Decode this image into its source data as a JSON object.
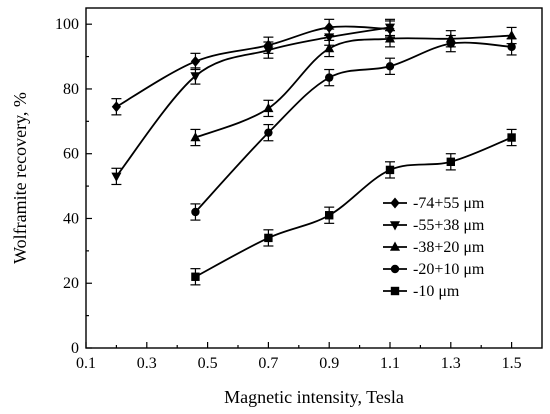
{
  "chart_data": {
    "type": "line",
    "xlabel": "Magnetic intensity, Tesla",
    "ylabel": "Wolframite recovery, %",
    "xlim": [
      0.1,
      1.6
    ],
    "ylim": [
      0,
      105
    ],
    "x_ticks": [
      0.1,
      0.3,
      0.5,
      0.7,
      0.9,
      1.1,
      1.3,
      1.5
    ],
    "y_ticks": [
      0,
      20,
      40,
      60,
      80,
      100
    ],
    "x_tick_labels": [
      "0.1",
      "0.3",
      "0.5",
      "0.7",
      "0.9",
      "1.1",
      "1.3",
      "1.5"
    ],
    "y_tick_labels": [
      "0",
      "20",
      "40",
      "60",
      "80",
      "100"
    ],
    "grid": false,
    "legend_position": "bottom-right",
    "error_bar": 2.5,
    "series": [
      {
        "name": "-74+55 μm",
        "marker": "diamond",
        "x": [
          0.2,
          0.46,
          0.7,
          0.9,
          1.1
        ],
        "y": [
          74.5,
          88.5,
          93.5,
          99,
          98.5
        ]
      },
      {
        "name": "-55+38 μm",
        "marker": "triangle-down",
        "x": [
          0.2,
          0.46,
          0.7,
          0.9,
          1.1
        ],
        "y": [
          53,
          84,
          92,
          96,
          99
        ]
      },
      {
        "name": "-38+20 μm",
        "marker": "triangle-up",
        "x": [
          0.46,
          0.7,
          0.9,
          1.1,
          1.3,
          1.5
        ],
        "y": [
          65,
          74,
          92.5,
          95.5,
          95.5,
          96.5
        ]
      },
      {
        "name": "-20+10 μm",
        "marker": "circle",
        "x": [
          0.46,
          0.7,
          0.9,
          1.1,
          1.3,
          1.5
        ],
        "y": [
          42,
          66.5,
          83.5,
          87,
          94,
          93
        ]
      },
      {
        "name": "-10 μm",
        "marker": "square",
        "x": [
          0.46,
          0.7,
          0.9,
          1.1,
          1.3,
          1.5
        ],
        "y": [
          22,
          34,
          41,
          55,
          57.5,
          65
        ]
      }
    ]
  }
}
